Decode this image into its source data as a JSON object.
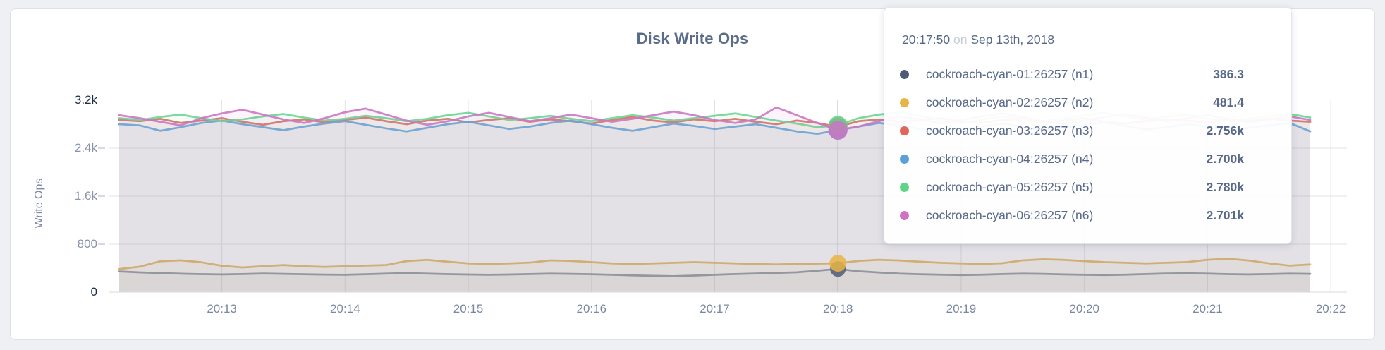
{
  "colors": {
    "page_bg": "#eef0f3",
    "card_bg": "#ffffff",
    "card_border": "#dde1e7",
    "grid": "#e2e3e8",
    "axis_tick_dash": "#c8ccd6",
    "baseline": "#d8dade",
    "hover_line": "#b9bcc4",
    "title_text": "#5a6c88",
    "axis_text": "#7b88a2",
    "axis_text_dark": "#1e2c47"
  },
  "chart_data": {
    "type": "line",
    "title": "Disk Write Ops",
    "ylabel": "Write Ops",
    "xlabel": "",
    "grid": true,
    "legend": "tooltip-only",
    "ylim": [
      0,
      3200
    ],
    "y_ticks": [
      "3.2k",
      "2.4k",
      "1.6k",
      "800",
      "0"
    ],
    "y_tick_values": [
      3200,
      2400,
      1600,
      800,
      0
    ],
    "x_ticks": [
      "20:13",
      "20:14",
      "20:15",
      "20:16",
      "20:17",
      "20:18",
      "20:19",
      "20:20",
      "20:21",
      "20:22"
    ],
    "x_start": "20:12:10",
    "x_interval_seconds": 10,
    "hover_index": 35,
    "series": [
      {
        "name": "cockroach-cyan-01:26257 (n1)",
        "color": "#828a9c",
        "dot": "#4f5b76",
        "values": [
          345,
          330,
          318,
          308,
          300,
          296,
          302,
          310,
          304,
          298,
          293,
          290,
          299,
          309,
          318,
          309,
          300,
          294,
          289,
          294,
          301,
          309,
          304,
          298,
          289,
          280,
          272,
          266,
          276,
          290,
          301,
          311,
          321,
          331,
          358,
          386.3,
          348,
          328,
          309,
          299,
          291,
          286,
          291,
          301,
          309,
          304,
          296,
          290,
          286,
          291,
          301,
          311,
          315,
          309,
          300,
          295,
          301,
          309,
          304
        ]
      },
      {
        "name": "cockroach-cyan-02:26257 (n2)",
        "color": "#e2b254",
        "dot": "#e9b445",
        "values": [
          385,
          425,
          515,
          530,
          498,
          440,
          412,
          432,
          452,
          432,
          420,
          432,
          442,
          452,
          518,
          538,
          508,
          480,
          470,
          480,
          492,
          530,
          520,
          500,
          480,
          470,
          480,
          490,
          500,
          490,
          480,
          470,
          462,
          470,
          476,
          481.4,
          520,
          540,
          528,
          508,
          490,
          480,
          470,
          482,
          530,
          548,
          538,
          518,
          500,
          490,
          480,
          490,
          502,
          540,
          558,
          528,
          480,
          442,
          462
        ]
      },
      {
        "name": "cockroach-cyan-03:26257 (n3)",
        "color": "#de6c60",
        "dot": "#e0655a",
        "values": [
          2870,
          2850,
          2890,
          2820,
          2860,
          2900,
          2840,
          2790,
          2850,
          2880,
          2830,
          2870,
          2910,
          2850,
          2800,
          2860,
          2890,
          2830,
          2870,
          2900,
          2840,
          2880,
          2850,
          2810,
          2870,
          2920,
          2860,
          2830,
          2880,
          2850,
          2890,
          2840,
          2800,
          2860,
          2820,
          2756,
          2850,
          2880,
          2840,
          2870,
          2900,
          2850,
          2820,
          2870,
          2890,
          2830,
          2860,
          2900,
          2840,
          2810,
          2850,
          2880,
          2860,
          2830,
          2870,
          2850,
          2890,
          2860,
          2840
        ]
      },
      {
        "name": "cockroach-cyan-04:26257 (n4)",
        "color": "#64a3da",
        "dot": "#5ba0d9",
        "values": [
          2800,
          2780,
          2690,
          2750,
          2820,
          2860,
          2800,
          2750,
          2700,
          2760,
          2810,
          2850,
          2790,
          2730,
          2680,
          2740,
          2800,
          2840,
          2780,
          2720,
          2760,
          2820,
          2860,
          2800,
          2740,
          2690,
          2750,
          2810,
          2770,
          2720,
          2760,
          2800,
          2740,
          2680,
          2640,
          2700,
          2760,
          2820,
          2780,
          2720,
          2660,
          2700,
          2760,
          2810,
          2750,
          2700,
          2740,
          2790,
          2830,
          2770,
          2710,
          2750,
          2800,
          2760,
          2700,
          2740,
          2780,
          2820,
          2680
        ]
      },
      {
        "name": "cockroach-cyan-05:26257 (n5)",
        "color": "#6cd693",
        "dot": "#5ed489",
        "values": [
          2900,
          2870,
          2920,
          2960,
          2900,
          2850,
          2880,
          2930,
          2970,
          2910,
          2860,
          2890,
          2940,
          2900,
          2850,
          2890,
          2950,
          2990,
          2930,
          2870,
          2900,
          2940,
          2890,
          2850,
          2900,
          2950,
          2910,
          2860,
          2900,
          2940,
          2980,
          2920,
          2860,
          2810,
          2750,
          2780,
          2900,
          2960,
          3000,
          2940,
          2870,
          2820,
          2880,
          2930,
          2890,
          2850,
          2900,
          2950,
          2990,
          2930,
          2880,
          2920,
          2960,
          2900,
          2850,
          2890,
          2930,
          2970,
          2910
        ]
      },
      {
        "name": "cockroach-cyan-06:26257 (n6)",
        "color": "#cb77c4",
        "dot": "#cf72c3",
        "values": [
          2950,
          2900,
          2840,
          2780,
          2900,
          2980,
          3040,
          2960,
          2880,
          2820,
          2900,
          3000,
          3060,
          2960,
          2860,
          2790,
          2850,
          2930,
          2990,
          2920,
          2850,
          2900,
          2960,
          2900,
          2840,
          2890,
          2950,
          3010,
          2950,
          2870,
          2820,
          2880,
          3080,
          2950,
          2820,
          2701,
          2760,
          2850,
          2930,
          2880,
          2820,
          2870,
          2930,
          2980,
          2920,
          2850,
          2800,
          2860,
          2920,
          2970,
          2910,
          2850,
          2900,
          2950,
          2890,
          2830,
          2880,
          2930,
          2870
        ]
      }
    ]
  },
  "tooltip": {
    "time": "20:17:50",
    "conj": "on",
    "date": "Sep 13th, 2018",
    "rows": [
      {
        "name": "cockroach-cyan-01:26257 (n1)",
        "value": "386.3",
        "color": "#4f5b76"
      },
      {
        "name": "cockroach-cyan-02:26257 (n2)",
        "value": "481.4",
        "color": "#e9b445"
      },
      {
        "name": "cockroach-cyan-03:26257 (n3)",
        "value": "2.756k",
        "color": "#e0655a"
      },
      {
        "name": "cockroach-cyan-04:26257 (n4)",
        "value": "2.700k",
        "color": "#5ba0d9"
      },
      {
        "name": "cockroach-cyan-05:26257 (n5)",
        "value": "2.780k",
        "color": "#5ed489"
      },
      {
        "name": "cockroach-cyan-06:26257 (n6)",
        "value": "2.701k",
        "color": "#cf72c3"
      }
    ]
  }
}
